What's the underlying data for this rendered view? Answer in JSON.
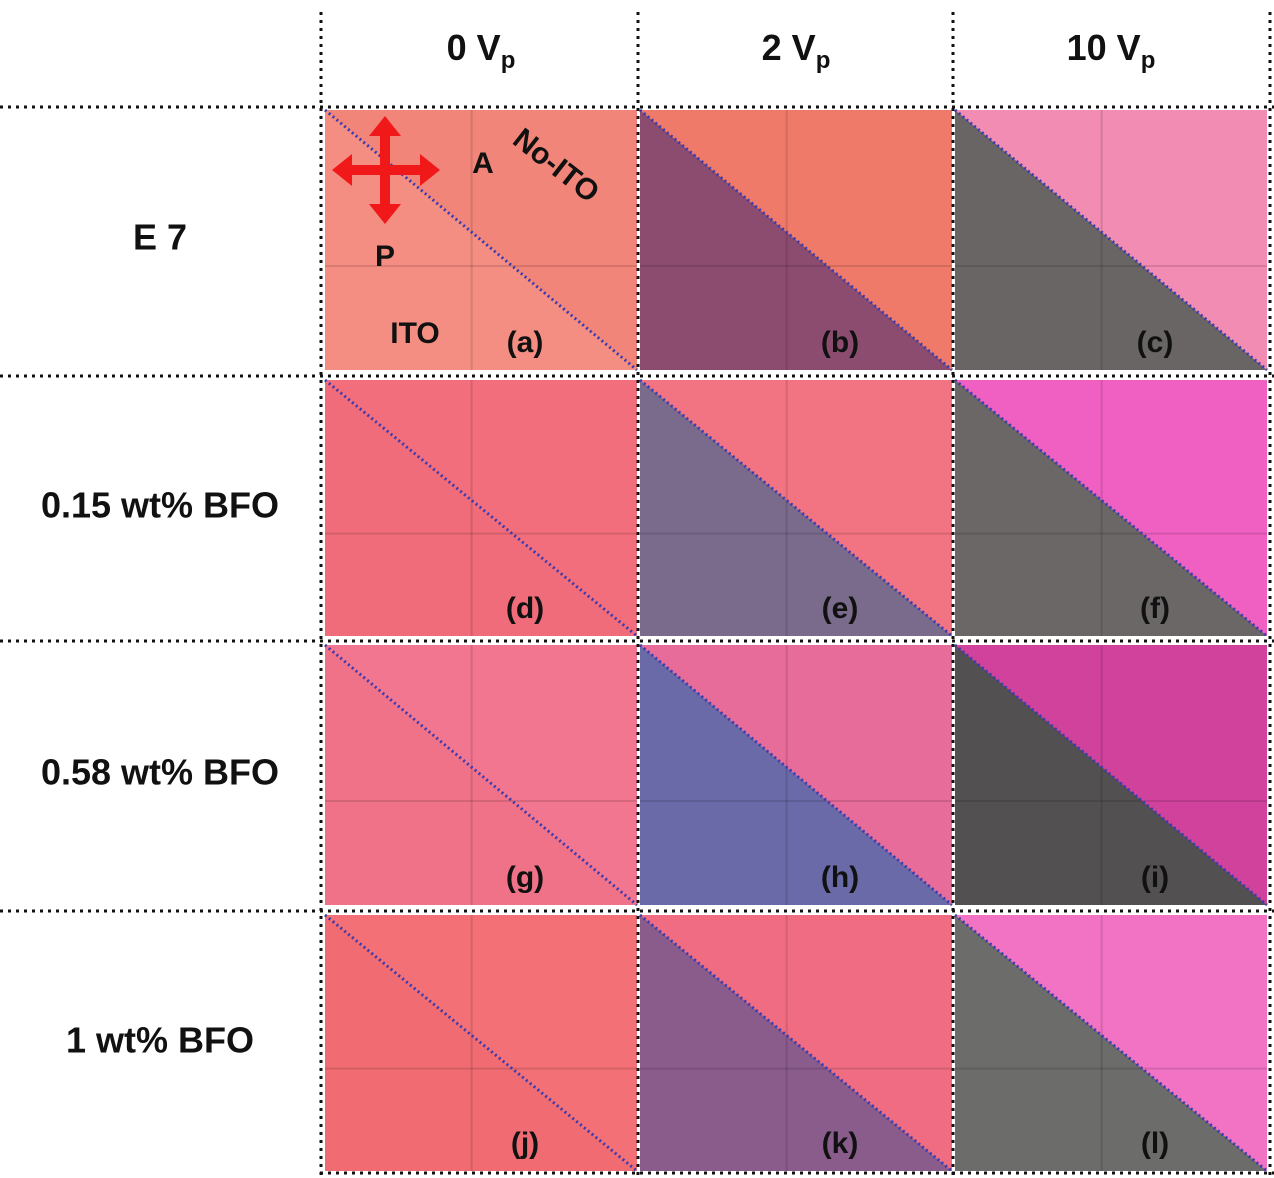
{
  "columns": [
    {
      "text": "0 V",
      "sub": "p"
    },
    {
      "text": "2 V",
      "sub": "p"
    },
    {
      "text": "10 V",
      "sub": "p"
    }
  ],
  "rows": [
    "E 7",
    "0.15 wt% BFO",
    "0.58 wt% BFO",
    "1 wt% BFO"
  ],
  "panels": [
    "(a)",
    "(b)",
    "(c)",
    "(d)",
    "(e)",
    "(f)",
    "(g)",
    "(h)",
    "(i)",
    "(j)",
    "(k)",
    "(l)"
  ],
  "annotations": {
    "analyzer": "A",
    "polarizer": "P",
    "no_ito": "No-ITO",
    "ito": "ITO"
  }
}
